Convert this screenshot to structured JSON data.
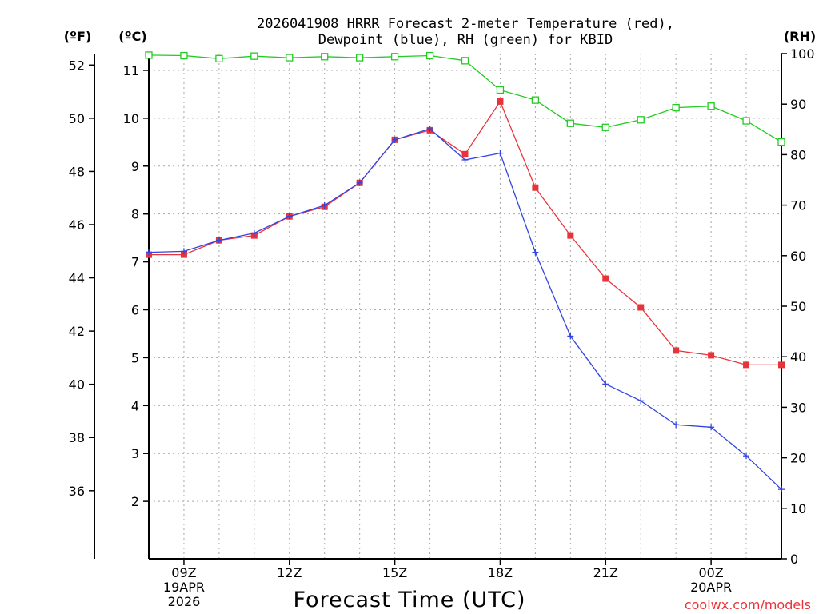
{
  "chart_data": {
    "type": "line",
    "title_line1": "2026041908 HRRR Forecast 2-meter Temperature (red),",
    "title_line2": "Dewpoint (blue), RH (green) for KBID",
    "xlabel": "Forecast Time (UTC)",
    "credit": "coolwx.com/models",
    "unit_labels": {
      "fahrenheit": "(ºF)",
      "celsius": "(ºC)",
      "rh": "(RH)"
    },
    "x": [
      8,
      9,
      10,
      11,
      12,
      13,
      14,
      15,
      16,
      17,
      18,
      19,
      20,
      21,
      22,
      23,
      24,
      25,
      26
    ],
    "xlim": [
      8,
      26
    ],
    "x_ticks": [
      {
        "x": 9,
        "lines": [
          "09Z",
          "19APR",
          "2026"
        ]
      },
      {
        "x": 12,
        "lines": [
          "12Z"
        ]
      },
      {
        "x": 15,
        "lines": [
          "15Z"
        ]
      },
      {
        "x": 18,
        "lines": [
          "18Z"
        ]
      },
      {
        "x": 21,
        "lines": [
          "21Z"
        ]
      },
      {
        "x": 24,
        "lines": [
          "00Z",
          "20APR"
        ]
      }
    ],
    "ylim_celsius": [
      0.8,
      11.35
    ],
    "yticks_celsius": [
      2,
      3,
      4,
      5,
      6,
      7,
      8,
      9,
      10,
      11
    ],
    "yticks_fahrenheit": [
      36,
      38,
      40,
      42,
      44,
      46,
      48,
      50,
      52
    ],
    "ylim_rh": [
      0,
      100
    ],
    "yticks_rh": [
      0,
      10,
      20,
      30,
      40,
      50,
      60,
      70,
      80,
      90,
      100
    ],
    "series": [
      {
        "name": "Temperature",
        "axis": "celsius",
        "color": "#e8333a",
        "marker": "square-filled",
        "values": [
          7.15,
          7.15,
          7.45,
          7.55,
          7.95,
          8.15,
          8.65,
          9.55,
          9.75,
          9.25,
          10.35,
          8.55,
          7.55,
          6.65,
          6.05,
          5.15,
          5.05,
          4.85,
          4.85
        ]
      },
      {
        "name": "Dewpoint",
        "axis": "celsius",
        "color": "#3344e0",
        "marker": "plus",
        "values": [
          7.2,
          7.22,
          7.45,
          7.6,
          7.95,
          8.18,
          8.65,
          9.55,
          9.78,
          9.13,
          9.27,
          7.2,
          5.45,
          4.45,
          4.1,
          3.6,
          3.55,
          2.95,
          2.25
        ]
      },
      {
        "name": "RH",
        "axis": "rh",
        "color": "#22cc22",
        "marker": "square-open",
        "values": [
          99.7,
          99.6,
          99.0,
          99.5,
          99.2,
          99.4,
          99.2,
          99.4,
          99.6,
          98.6,
          92.8,
          90.8,
          86.2,
          85.4,
          86.9,
          89.3,
          89.6,
          86.7,
          82.5
        ]
      }
    ]
  }
}
